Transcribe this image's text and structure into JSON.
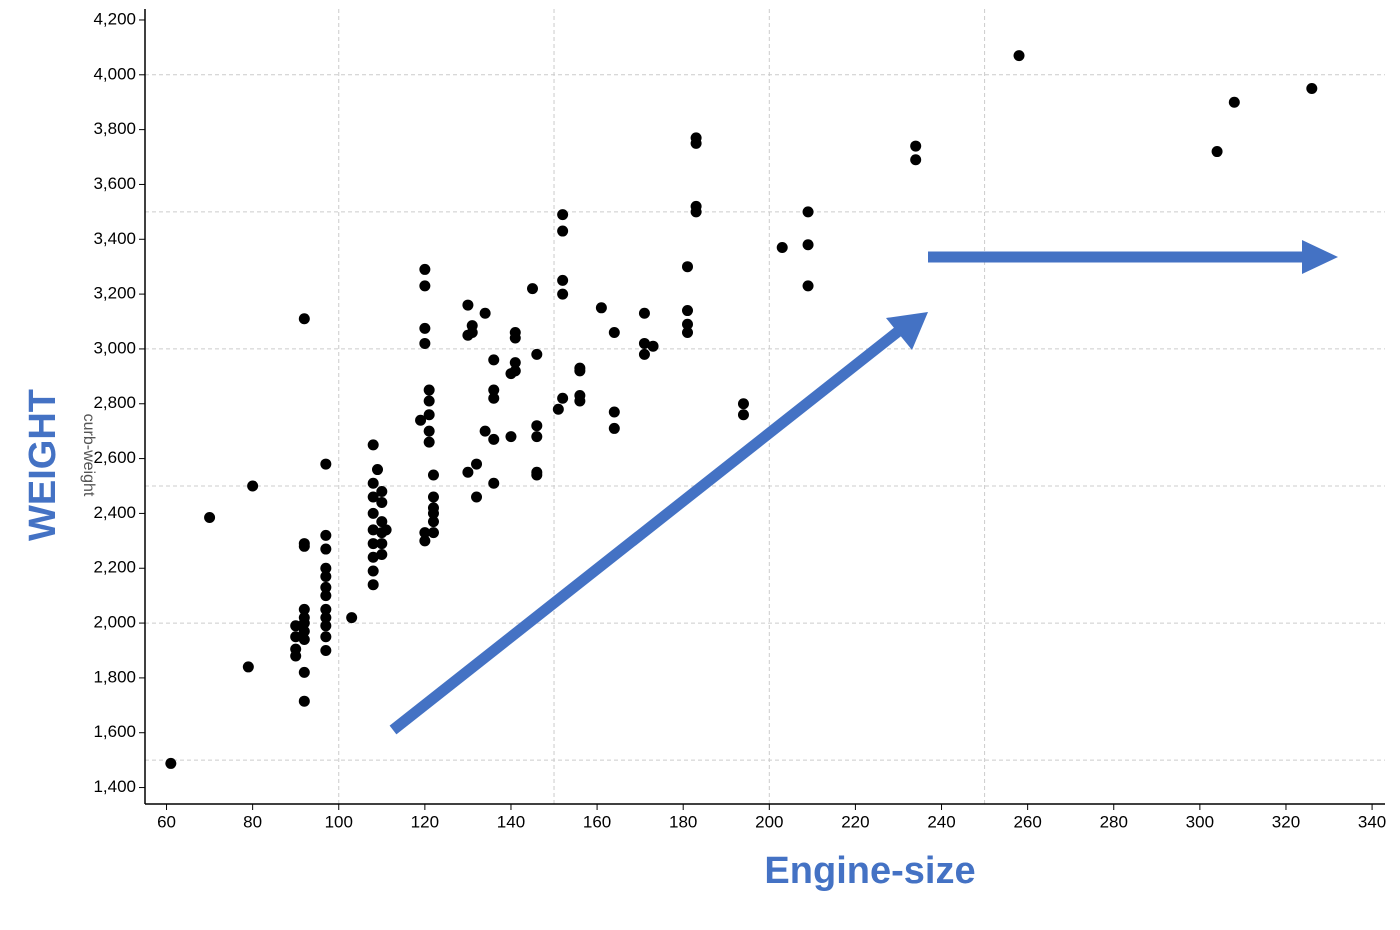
{
  "chart_data": {
    "type": "scatter",
    "xlabel": "Engine-size",
    "ylabel": "WEIGHT",
    "ylabel_faint": "curb-weight",
    "color": "#000000",
    "x": [
      61,
      70,
      79,
      80,
      92,
      92,
      92,
      92,
      92,
      90,
      90,
      90,
      90,
      92,
      92,
      92,
      92,
      92,
      97,
      97,
      97,
      97,
      97,
      97,
      97,
      97,
      97,
      97,
      97,
      97,
      103,
      108,
      108,
      108,
      108,
      108,
      108,
      108,
      108,
      108,
      109,
      110,
      110,
      110,
      110,
      110,
      110,
      111,
      120,
      120,
      120,
      120,
      121,
      121,
      121,
      121,
      121,
      119,
      120,
      120,
      122,
      122,
      122,
      122,
      122,
      122,
      130,
      131,
      130,
      131,
      134,
      136,
      136,
      136,
      136,
      134,
      130,
      132,
      132,
      136,
      141,
      141,
      141,
      140,
      141,
      140,
      145,
      146,
      146,
      146,
      146,
      146,
      152,
      152,
      152,
      152,
      151,
      152,
      156,
      156,
      156,
      156,
      161,
      164,
      164,
      164,
      171,
      171,
      171,
      173,
      181,
      181,
      181,
      181,
      183,
      183,
      183,
      183,
      194,
      194,
      203,
      209,
      209,
      209,
      234,
      234,
      258,
      304,
      308,
      326
    ],
    "y": [
      1488,
      2385,
      1840,
      2500,
      3110,
      2290,
      2280,
      1715,
      1820,
      1990,
      1950,
      1905,
      1880,
      2050,
      2020,
      2000,
      1970,
      1940,
      2580,
      2320,
      2270,
      2200,
      2170,
      2130,
      2100,
      2050,
      2020,
      1990,
      1950,
      1900,
      2020,
      2650,
      2510,
      2460,
      2400,
      2340,
      2290,
      2240,
      2190,
      2140,
      2560,
      2480,
      2440,
      2370,
      2330,
      2290,
      2250,
      2340,
      3290,
      3230,
      3075,
      3020,
      2850,
      2810,
      2760,
      2700,
      2660,
      2740,
      2330,
      2300,
      2540,
      2460,
      2420,
      2400,
      2370,
      2330,
      3160,
      3085,
      3050,
      3060,
      3130,
      2960,
      2850,
      2820,
      2670,
      2700,
      2550,
      2580,
      2460,
      2510,
      3060,
      3040,
      2950,
      2910,
      2920,
      2680,
      3220,
      2980,
      2720,
      2680,
      2550,
      2540,
      3490,
      3430,
      3250,
      3200,
      2780,
      2820,
      2930,
      2920,
      2830,
      2810,
      3150,
      3060,
      2770,
      2710,
      3130,
      3020,
      2980,
      3010,
      3300,
      3140,
      3090,
      3060,
      3770,
      3750,
      3520,
      3500,
      2800,
      2760,
      3370,
      3500,
      3380,
      3230,
      3740,
      3690,
      4070,
      3720,
      3900,
      3950
    ],
    "xlim": [
      55,
      343
    ],
    "ylim": [
      1340,
      4240
    ],
    "xticks": [
      60,
      80,
      100,
      120,
      140,
      160,
      180,
      200,
      220,
      240,
      260,
      280,
      300,
      320,
      340
    ],
    "yticks": [
      {
        "value": 1400,
        "label": "1,400"
      },
      {
        "value": 1600,
        "label": "1,600"
      },
      {
        "value": 1800,
        "label": "1,800"
      },
      {
        "value": 2000,
        "label": "2,000"
      },
      {
        "value": 2200,
        "label": "2,200"
      },
      {
        "value": 2400,
        "label": "2,400"
      },
      {
        "value": 2600,
        "label": "2,600"
      },
      {
        "value": 2800,
        "label": "2,800"
      },
      {
        "value": 3000,
        "label": "3,000"
      },
      {
        "value": 3200,
        "label": "3,200"
      },
      {
        "value": 3400,
        "label": "3,400"
      },
      {
        "value": 3600,
        "label": "3,600"
      },
      {
        "value": 3800,
        "label": "3,800"
      },
      {
        "value": 4000,
        "label": "4,000"
      },
      {
        "value": 4200,
        "label": "4,200"
      }
    ],
    "xgrid": [
      100,
      150,
      200,
      250
    ],
    "ygrid": [
      1500,
      2000,
      2500,
      3000,
      3500,
      4000
    ],
    "grid": true
  }
}
